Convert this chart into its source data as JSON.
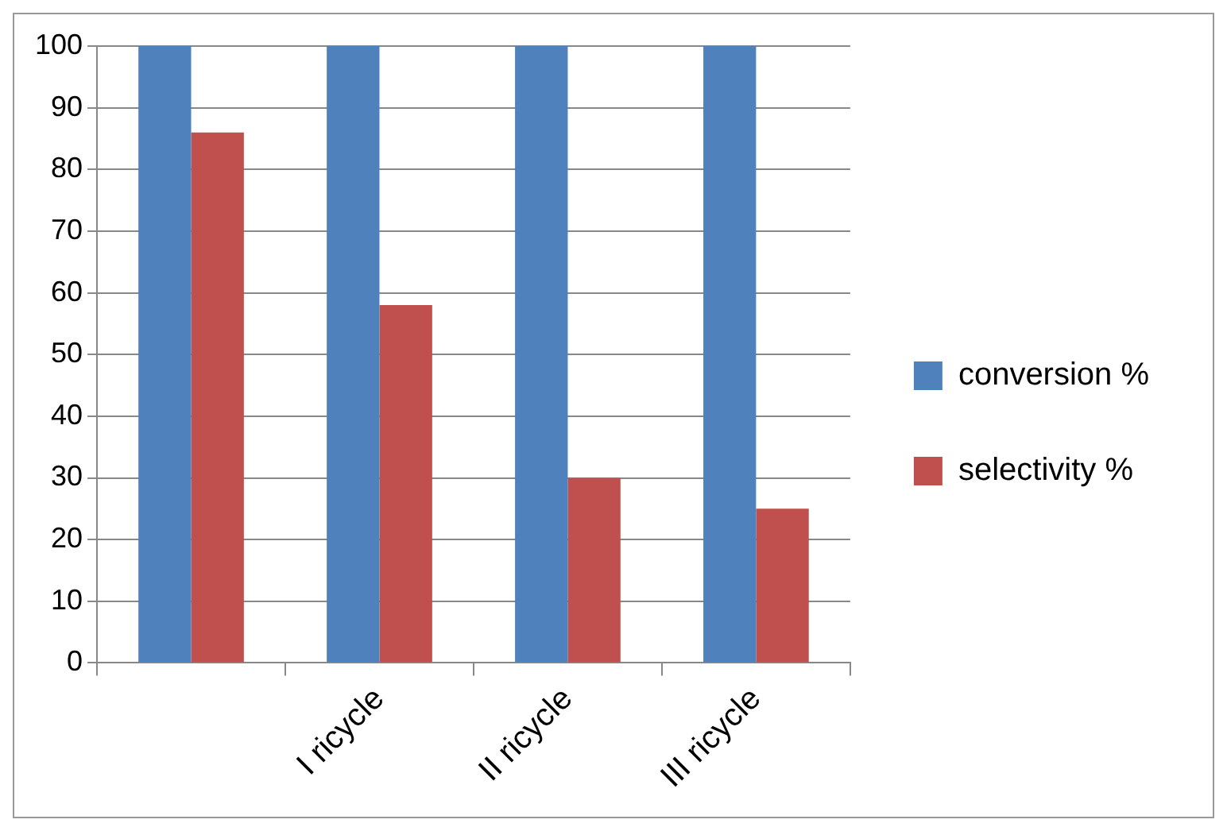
{
  "chart_data": {
    "type": "bar",
    "categories": [
      null,
      "I ricycle",
      "II ricycle",
      "III ricycle"
    ],
    "series": [
      {
        "name": "conversion %",
        "color": "#4f81bd",
        "values": [
          100,
          100,
          100,
          100
        ]
      },
      {
        "name": "selectivity %",
        "color": "#c0504d",
        "values": [
          86,
          58,
          30,
          25
        ]
      }
    ],
    "ylim": [
      0,
      100
    ],
    "yticks": [
      0,
      10,
      20,
      30,
      40,
      50,
      60,
      70,
      80,
      90,
      100
    ],
    "grid": "y",
    "legend": "right"
  }
}
